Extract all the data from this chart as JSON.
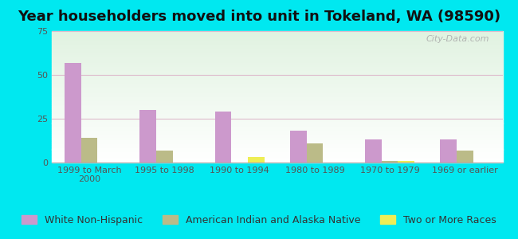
{
  "title": "Year householders moved into unit in Tokeland, WA (98590)",
  "categories": [
    "1999 to March\n2000",
    "1995 to 1998",
    "1990 to 1994",
    "1980 to 1989",
    "1970 to 1979",
    "1969 or earlier"
  ],
  "series": {
    "White Non-Hispanic": [
      57,
      30,
      29,
      18,
      13,
      13
    ],
    "American Indian and Alaska Native": [
      14,
      7,
      0,
      11,
      1,
      7
    ],
    "Two or More Races": [
      0,
      0,
      3,
      0,
      1,
      0
    ]
  },
  "colors": {
    "White Non-Hispanic": "#cc99cc",
    "American Indian and Alaska Native": "#bbbb88",
    "Two or More Races": "#eeee55"
  },
  "ylim": [
    0,
    75
  ],
  "yticks": [
    0,
    25,
    50,
    75
  ],
  "background_outer": "#00e8f0",
  "bar_width": 0.22,
  "title_fontsize": 13,
  "legend_fontsize": 9,
  "tick_fontsize": 8
}
